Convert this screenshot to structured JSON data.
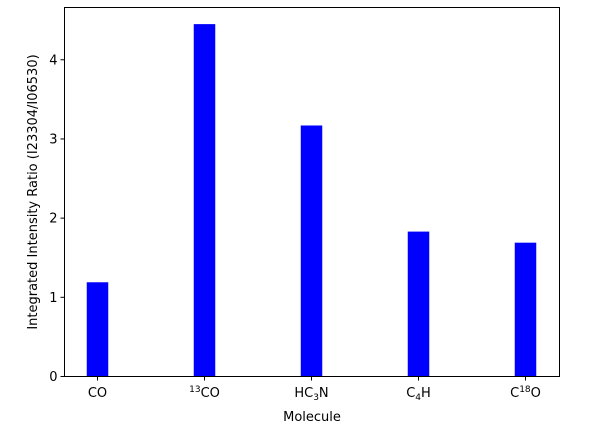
{
  "chart_data": {
    "type": "bar",
    "categories": [
      {
        "base": "CO",
        "parts": [
          {
            "t": "CO",
            "s": ""
          }
        ]
      },
      {
        "base": "13CO",
        "parts": [
          {
            "t": "13",
            "s": "sup"
          },
          {
            "t": "CO",
            "s": ""
          }
        ]
      },
      {
        "base": "HC3N",
        "parts": [
          {
            "t": "HC",
            "s": ""
          },
          {
            "t": "3",
            "s": "sub"
          },
          {
            "t": "N",
            "s": ""
          }
        ]
      },
      {
        "base": "C4H",
        "parts": [
          {
            "t": "C",
            "s": ""
          },
          {
            "t": "4",
            "s": "sub"
          },
          {
            "t": "H",
            "s": ""
          }
        ]
      },
      {
        "base": "C18O",
        "parts": [
          {
            "t": "C",
            "s": ""
          },
          {
            "t": "18",
            "s": "sup"
          },
          {
            "t": "O",
            "s": ""
          }
        ]
      }
    ],
    "values": [
      1.19,
      4.45,
      3.17,
      1.83,
      1.69
    ],
    "xlabel": "Molecule",
    "ylabel": "Integrated Intensity Ratio (I23304/I06530)",
    "ylim": [
      0,
      4.66
    ],
    "yticks": [
      "0",
      "1",
      "2",
      "3",
      "4"
    ],
    "bar_color": "#0000ff",
    "grid": false
  }
}
